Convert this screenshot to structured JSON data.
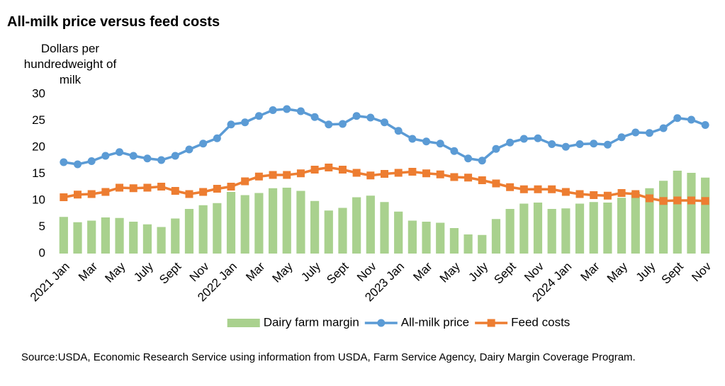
{
  "chart_data": {
    "type": "bar-line",
    "title": "All-milk price versus feed costs",
    "y_label": "Dollars per hundredweight of milk",
    "source": "Source:USDA, Economic Research Service using information from USDA, Farm Service Agency, Dairy Margin Coverage Program.",
    "categories": [
      "2021 Jan",
      null,
      "Mar",
      null,
      "May",
      null,
      "July",
      null,
      "Sept",
      null,
      "Nov",
      null,
      "2022 Jan",
      null,
      "Mar",
      null,
      "May",
      null,
      "July",
      null,
      "Sept",
      null,
      "Nov",
      null,
      "2023 Jan",
      null,
      "Mar",
      null,
      "May",
      null,
      "July",
      null,
      "Sept",
      null,
      "Nov",
      null,
      "2024 Jan",
      null,
      "Mar",
      null,
      "May",
      null,
      "July",
      null,
      "Sept",
      null,
      "Nov"
    ],
    "series": [
      {
        "name": "Dairy farm margin",
        "kind": "bar",
        "color": "#a9d18e",
        "values": [
          6.9,
          5.9,
          6.2,
          6.8,
          6.7,
          6.0,
          5.5,
          5.0,
          6.6,
          8.4,
          9.1,
          9.5,
          11.6,
          11.0,
          11.4,
          12.3,
          12.4,
          11.8,
          9.9,
          8.1,
          8.6,
          10.6,
          10.9,
          9.7,
          7.9,
          6.2,
          6.0,
          5.8,
          4.8,
          3.6,
          3.5,
          6.5,
          8.4,
          9.4,
          9.6,
          8.4,
          8.5,
          9.4,
          9.7,
          9.6,
          10.5,
          11.6,
          12.3,
          13.7,
          15.6,
          15.2,
          14.3
        ]
      },
      {
        "name": "All-milk price",
        "kind": "line",
        "marker": "circle",
        "color": "#5b9bd5",
        "values": [
          17.2,
          16.8,
          17.4,
          18.4,
          19.1,
          18.4,
          17.9,
          17.6,
          18.4,
          19.6,
          20.7,
          21.7,
          24.3,
          24.7,
          25.9,
          27.0,
          27.2,
          26.8,
          25.7,
          24.3,
          24.4,
          25.9,
          25.6,
          24.7,
          23.1,
          21.6,
          21.1,
          20.7,
          19.3,
          17.9,
          17.5,
          19.7,
          20.9,
          21.6,
          21.7,
          20.6,
          20.1,
          20.6,
          20.7,
          20.5,
          21.9,
          22.8,
          22.7,
          23.6,
          25.5,
          25.2,
          24.2
        ]
      },
      {
        "name": "Feed costs",
        "kind": "line",
        "marker": "square",
        "color": "#ed7d31",
        "values": [
          10.6,
          11.1,
          11.2,
          11.6,
          12.4,
          12.3,
          12.4,
          12.6,
          11.8,
          11.2,
          11.6,
          12.2,
          12.6,
          13.6,
          14.5,
          14.8,
          14.8,
          15.1,
          15.8,
          16.2,
          15.8,
          15.2,
          14.7,
          15.0,
          15.2,
          15.4,
          15.1,
          14.9,
          14.4,
          14.3,
          13.8,
          13.2,
          12.5,
          12.1,
          12.1,
          12.1,
          11.6,
          11.2,
          11.0,
          10.9,
          11.4,
          11.2,
          10.4,
          9.9,
          10.0,
          10.0,
          9.9
        ]
      }
    ],
    "ylim": [
      0,
      30
    ],
    "yticks": [
      0,
      5,
      10,
      15,
      20,
      25,
      30
    ],
    "grid": false,
    "legend": "bottom"
  }
}
